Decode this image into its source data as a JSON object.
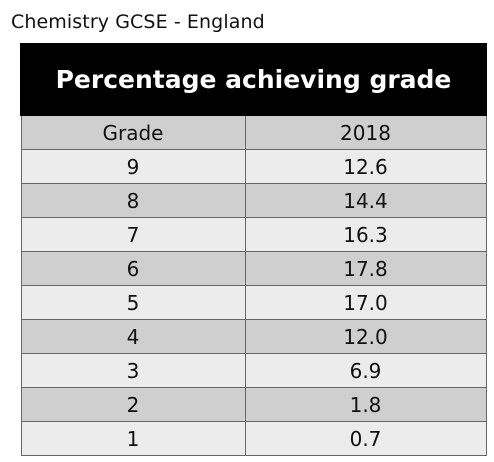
{
  "caption": "Chemistry GCSE - England",
  "chart_data": {
    "type": "table",
    "title": "Percentage achieving grade",
    "columns": [
      "Grade",
      "2018"
    ],
    "categories": [
      "9",
      "8",
      "7",
      "6",
      "5",
      "4",
      "3",
      "2",
      "1"
    ],
    "series": [
      {
        "name": "2018",
        "values": [
          "12.6",
          "14.4",
          "16.3",
          "17.8",
          "17.0",
          "12.0",
          "6.9",
          "1.8",
          "0.7"
        ]
      }
    ]
  }
}
